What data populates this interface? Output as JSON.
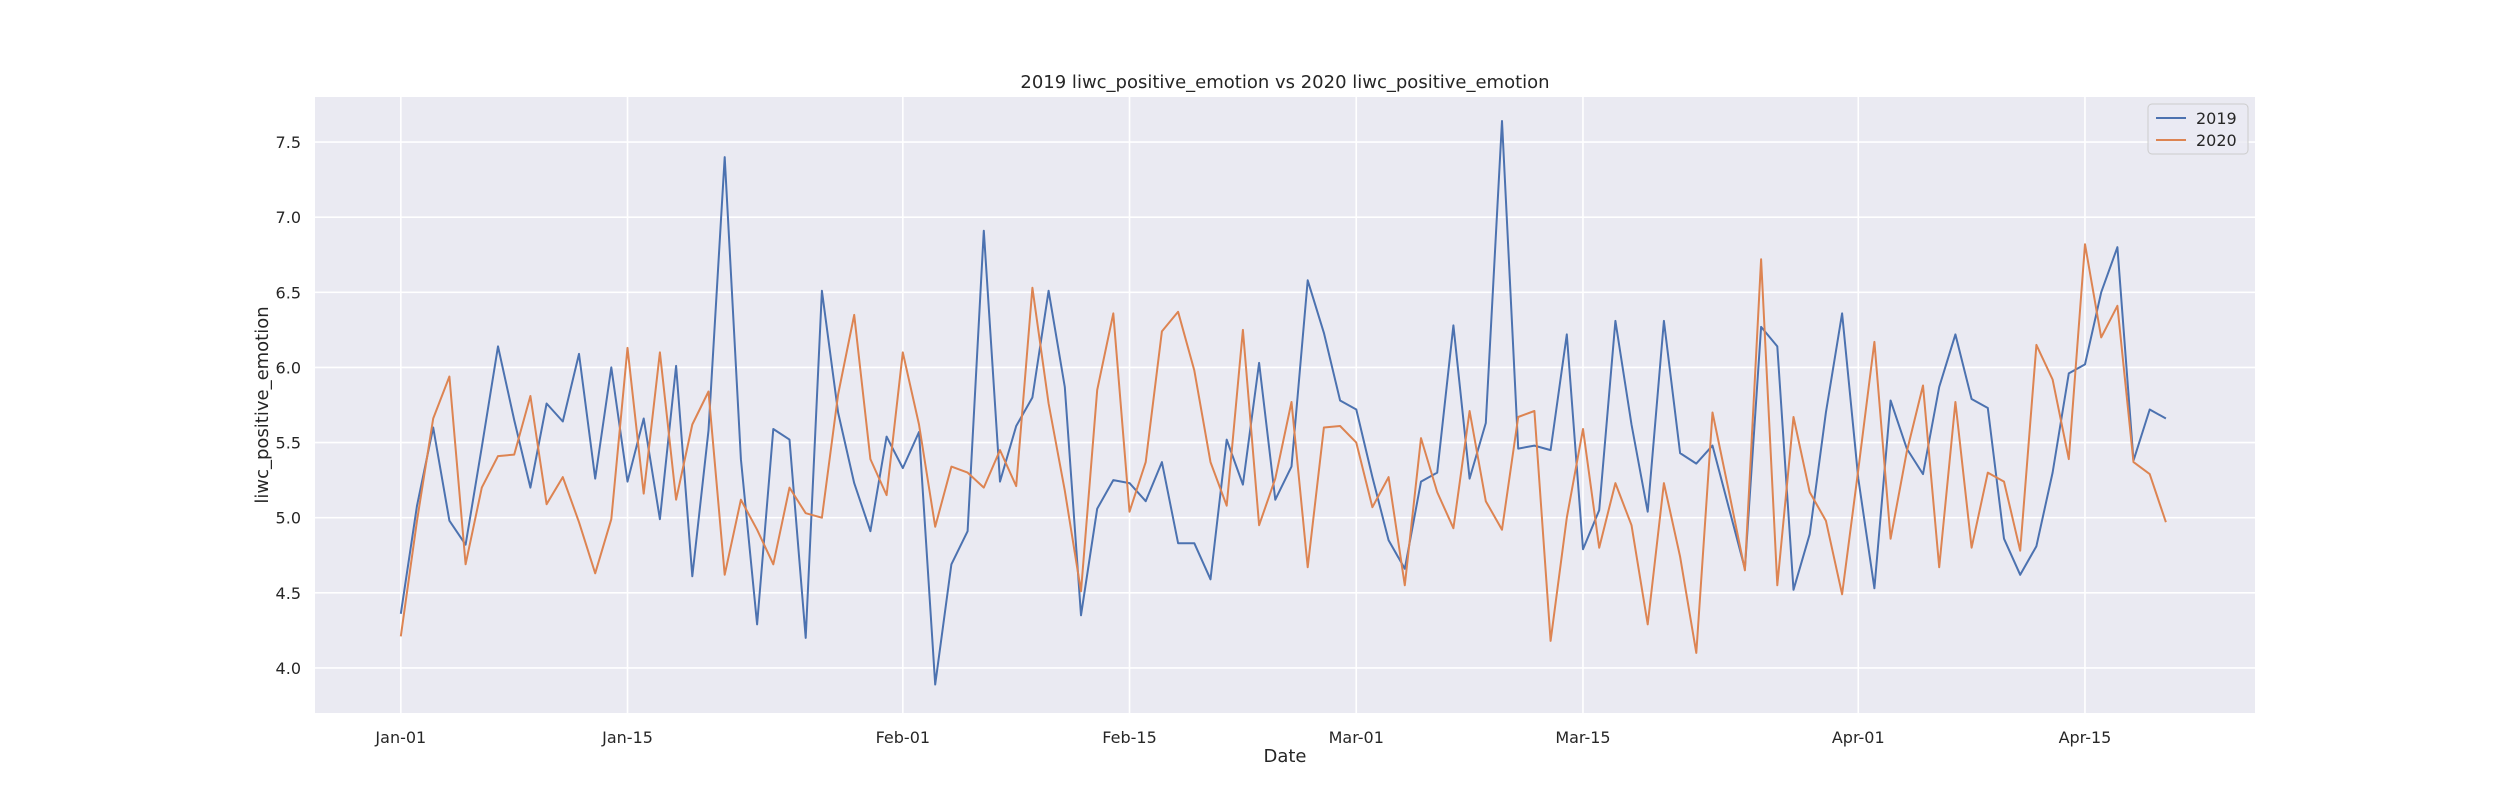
{
  "chart_data": {
    "type": "line",
    "title": "2019 liwc_positive_emotion vs 2020 liwc_positive_emotion",
    "xlabel": "Date",
    "ylabel": "liwc_positive_emotion",
    "x_start": "Jan-01",
    "x_ticks": [
      {
        "label": "Jan-01",
        "day": 0
      },
      {
        "label": "Jan-15",
        "day": 14
      },
      {
        "label": "Feb-01",
        "day": 31
      },
      {
        "label": "Feb-15",
        "day": 45
      },
      {
        "label": "Mar-01",
        "day": 59
      },
      {
        "label": "Mar-15",
        "day": 73
      },
      {
        "label": "Apr-01",
        "day": 90
      },
      {
        "label": "Apr-15",
        "day": 104
      }
    ],
    "y_ticks": [
      4.0,
      4.5,
      5.0,
      5.5,
      6.0,
      6.5,
      7.0,
      7.5
    ],
    "ylim": [
      3.7,
      7.8
    ],
    "xlim_days": [
      -5.3,
      114.5
    ],
    "grid": true,
    "legend_position": "top-right",
    "series": [
      {
        "name": "2019",
        "color": "#4c72b0",
        "values": [
          4.36,
          5.08,
          5.6,
          4.98,
          4.82,
          5.47,
          6.14,
          5.65,
          5.2,
          5.76,
          5.64,
          6.09,
          5.26,
          6.0,
          5.24,
          5.66,
          4.99,
          6.01,
          4.61,
          5.58,
          7.4,
          5.39,
          4.29,
          5.59,
          5.52,
          4.2,
          6.51,
          5.7,
          5.23,
          4.91,
          5.54,
          5.33,
          5.57,
          3.89,
          4.69,
          4.91,
          6.91,
          5.24,
          5.61,
          5.8,
          6.51,
          5.87,
          4.35,
          5.06,
          5.25,
          5.23,
          5.11,
          5.37,
          4.83,
          4.83,
          4.59,
          5.52,
          5.22,
          6.03,
          5.12,
          5.34,
          6.58,
          6.23,
          5.78,
          5.72,
          5.27,
          4.85,
          4.66,
          5.24,
          5.3,
          6.28,
          5.26,
          5.63,
          7.64,
          5.46,
          5.48,
          5.45,
          6.22,
          4.79,
          5.05,
          6.31,
          5.62,
          5.04,
          6.31,
          5.43,
          5.36,
          5.48,
          5.07,
          4.66,
          6.27,
          6.14,
          4.52,
          4.89,
          5.7,
          6.36,
          5.26,
          4.53,
          5.78,
          5.46,
          5.29,
          5.87,
          6.22,
          5.79,
          5.73,
          4.86,
          4.62,
          4.81,
          5.3,
          5.96,
          6.02,
          6.5,
          6.8,
          5.38,
          5.72,
          5.66
        ]
      },
      {
        "name": "2020",
        "color": "#dd8452",
        "values": [
          4.21,
          4.98,
          5.66,
          5.94,
          4.69,
          5.2,
          5.41,
          5.42,
          5.81,
          5.09,
          5.27,
          4.97,
          4.63,
          4.99,
          6.13,
          5.16,
          6.1,
          5.12,
          5.62,
          5.84,
          4.62,
          5.12,
          4.92,
          4.69,
          5.2,
          5.03,
          5.0,
          5.82,
          6.35,
          5.39,
          5.15,
          6.1,
          5.62,
          4.94,
          5.34,
          5.3,
          5.2,
          5.45,
          5.21,
          6.53,
          5.76,
          5.18,
          4.51,
          5.85,
          6.36,
          5.04,
          5.37,
          6.24,
          6.37,
          5.98,
          5.37,
          5.08,
          6.25,
          4.95,
          5.26,
          5.77,
          4.67,
          5.6,
          5.61,
          5.5,
          5.07,
          5.27,
          4.55,
          5.53,
          5.17,
          4.93,
          5.71,
          5.11,
          4.92,
          5.67,
          5.71,
          4.18,
          5.0,
          5.59,
          4.8,
          5.23,
          4.95,
          4.29,
          5.23,
          4.74,
          4.1,
          5.7,
          5.18,
          4.65,
          6.72,
          4.55,
          5.67,
          5.17,
          4.98,
          4.49,
          5.32,
          6.17,
          4.86,
          5.44,
          5.88,
          4.67,
          5.77,
          4.8,
          5.3,
          5.24,
          4.78,
          6.15,
          5.92,
          5.39,
          6.82,
          6.2,
          6.41,
          5.37,
          5.29,
          4.97
        ]
      }
    ]
  }
}
